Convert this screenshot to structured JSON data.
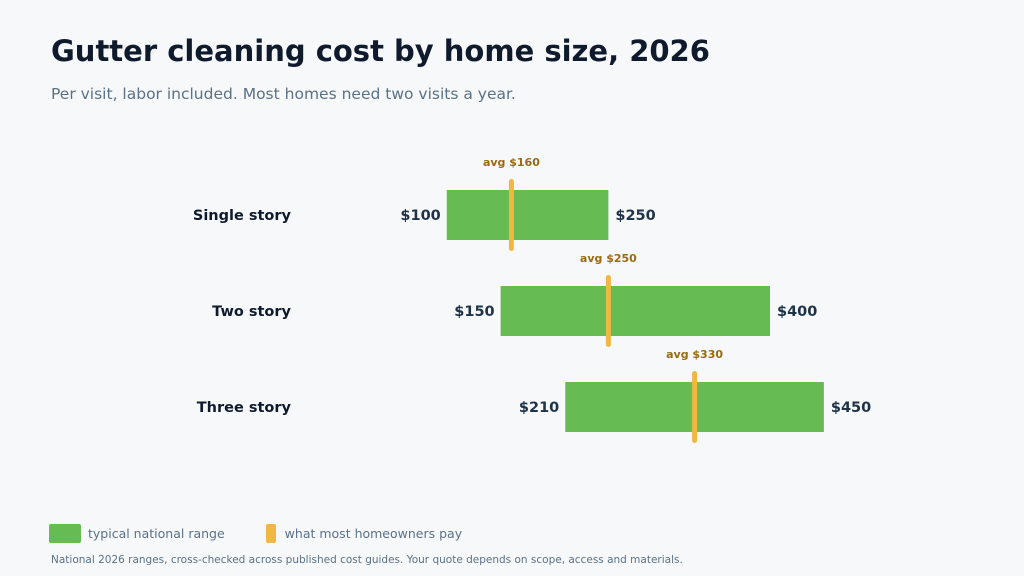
{
  "colors": {
    "range": "#66bb52",
    "avg": "#f0b742",
    "avg_label": "#9a6a12",
    "category_text": "#0f1b2d",
    "value_text": "#1e3248"
  },
  "legend": {
    "range_label": "typical national range",
    "avg_label": "what most homeowners pay"
  },
  "footnote": "National 2026 ranges, cross-checked across published cost guides. Your quote depends on scope, access and materials.",
  "chart_data": {
    "type": "bar",
    "subtype": "range-with-average",
    "title": "Gutter cleaning cost by home size, 2026",
    "subtitle": "Per visit, labor included. Most homes need two visits a year.",
    "categories": [
      "Single story",
      "Two story",
      "Three story"
    ],
    "series": [
      {
        "name": "typical national range",
        "low": [
          100,
          150,
          210
        ],
        "high": [
          250,
          400,
          450
        ]
      },
      {
        "name": "what most homeowners pay",
        "values": [
          160,
          250,
          330
        ]
      }
    ],
    "low_labels": [
      "$100",
      "$150",
      "$210"
    ],
    "high_labels": [
      "$250",
      "$400",
      "$450"
    ],
    "avg_labels": [
      "avg $160",
      "avg $250",
      "avg $330"
    ],
    "grid": false,
    "legend_position": "bottom-left"
  }
}
